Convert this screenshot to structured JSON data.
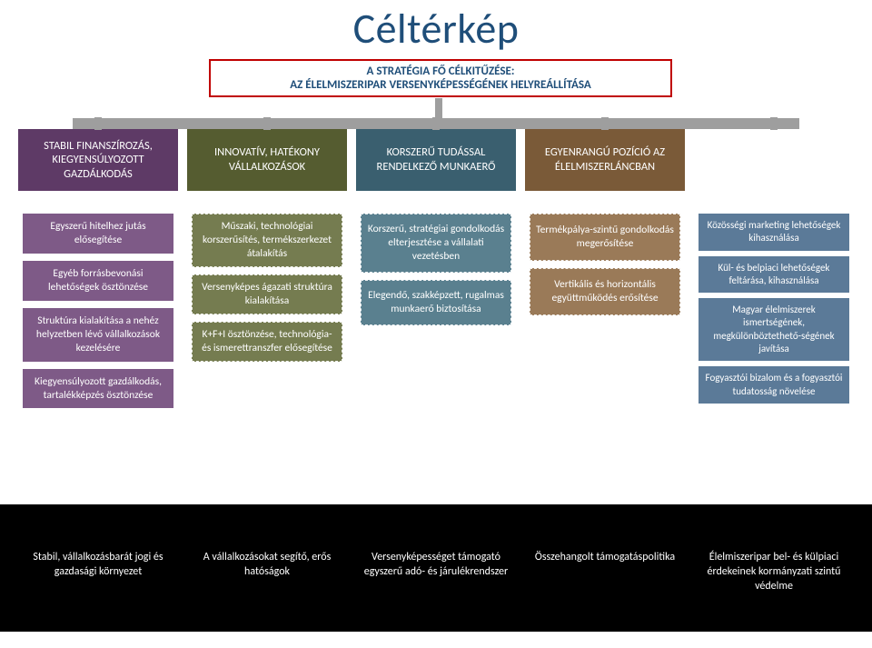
{
  "title": "Céltérkép",
  "header": {
    "line1": "A STRATÉGIA FŐ CÉLKITŰZÉSE:",
    "line2": "AZ ÉLELMISZERIPAR VERSENYKÉPESSÉGÉNEK HELYREÁLLÍTÁSA"
  },
  "colors": {
    "title": "#1f4e79",
    "header_border": "#c00000",
    "connector": "#9e9e9e",
    "footer_bg": "#000000",
    "pillar_head": [
      "#5e3a66",
      "#555c30",
      "#3a5f6f",
      "#7a5a38",
      "#3b5a78"
    ],
    "pillar_item": [
      "#7e5a87",
      "#757c50",
      "#5a808f",
      "#9a7a58",
      "#5b7a98"
    ]
  },
  "pillars": [
    {
      "head": "STABIL FINANSZÍROZÁS, KIEGYENSÚLYOZOTT GAZDÁLKODÁS",
      "style": "solid",
      "items": [
        "Egyszerű hitelhez jutás elősegítése",
        "Egyéb forrásbevonási lehetőségek ösztönzése",
        "Struktúra kialakítása a nehéz helyzetben lévő vállalkozások kezelésére",
        "Kiegyensúlyozott gazdálkodás, tartalékképzés ösztönzése"
      ]
    },
    {
      "head": "INNOVATÍV, HATÉKONY VÁLLALKOZÁSOK",
      "style": "dashed",
      "items": [
        "Műszaki, technológiai korszerűsítés, termékszerkezet átalakítás",
        "Versenyképes ágazati struktúra kialakítása",
        "K+F+I ösztönzése, technológia- és ismerettranszfer elősegítése"
      ]
    },
    {
      "head": "KORSZERŰ TUDÁSSAL RENDELKEZŐ MUNKAERŐ",
      "style": "dashed",
      "items": [
        "Korszerű, stratégiai gondolkodás elterjesztése a vállalati vezetésben",
        "Elegendő, szakképzett, rugalmas munkaerő biztosítása"
      ]
    },
    {
      "head": "EGYENRANGÚ POZÍCIÓ AZ ÉLELMISZERLÁNCBAN",
      "style": "dashed",
      "items": [
        "Termékpálya-szintű gondolkodás megerősítése",
        "Vertikális és horizontális együttműködés erősítése"
      ]
    },
    {
      "head": "",
      "head_hidden": true,
      "style": "solid",
      "items": [
        "Közösségi marketing lehetőségek kihasználása",
        "Kül- és belpiaci lehetőségek feltárása, kihasználása",
        "Magyar élelmiszerek ismertségének, megkülönböztethető-ségének javítása",
        "Fogyasztói bizalom és a fogyasztói tudatosság növelése"
      ]
    }
  ],
  "footer": [
    "Stabil, vállalkozásbarát jogi és gazdasági környezet",
    "A vállalkozásokat segítő, erős hatóságok",
    "Versenyképességet támogató egyszerű adó- és járulékrendszer",
    "Összehangolt támogatáspolitika",
    "Élelmiszeripar bel- és külpiaci érdekeinek kormányzati szintű védelme"
  ]
}
